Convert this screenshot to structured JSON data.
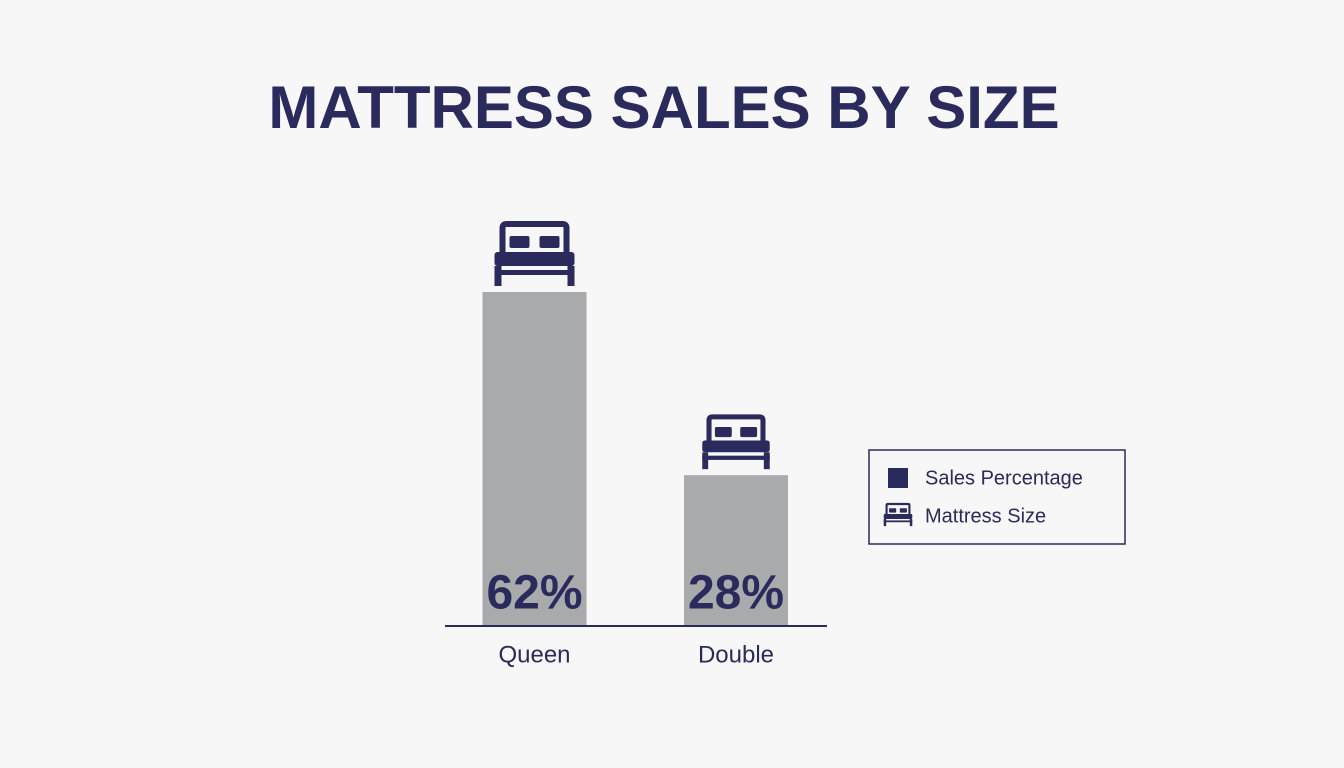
{
  "chart_data": {
    "type": "bar",
    "title": "MATTRESS SALES BY SIZE",
    "categories": [
      "Queen",
      "Double"
    ],
    "values": [
      62,
      28
    ],
    "value_labels": [
      "62%",
      "28%"
    ],
    "bar_color": "#a9aaac",
    "accent_color": "#2b2a5c",
    "legend": [
      "Sales Percentage",
      "Mattress Size"
    ],
    "legend_position": "right"
  }
}
